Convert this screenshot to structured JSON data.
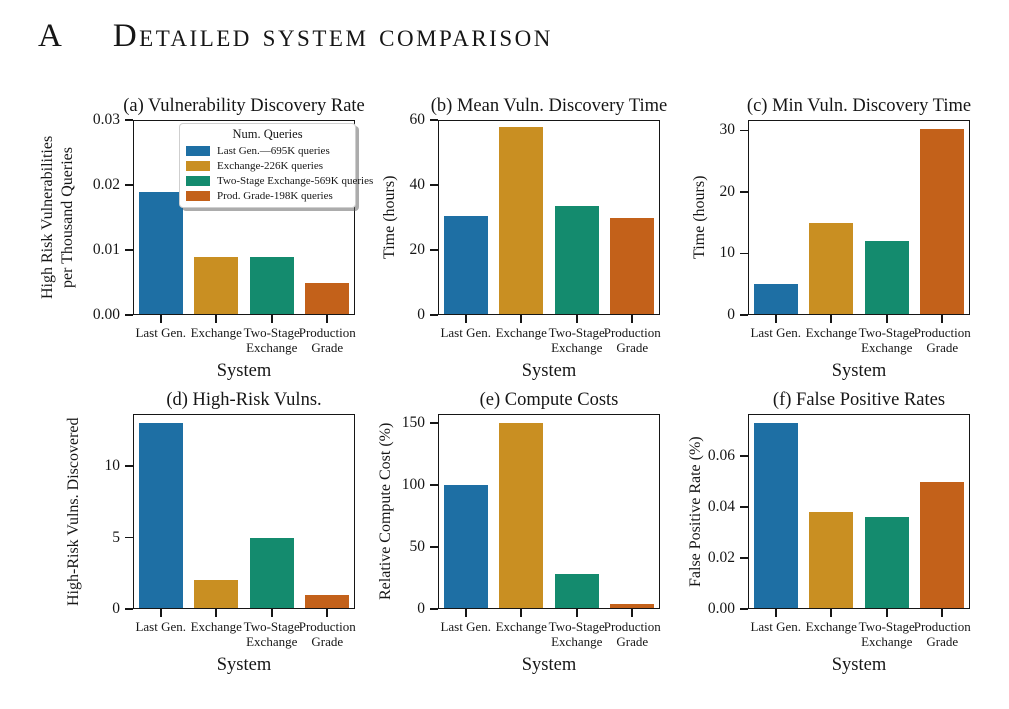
{
  "heading": {
    "label": "A",
    "title": "Detailed system comparison"
  },
  "palette": {
    "bar_colors": [
      "#1e6fa4",
      "#c98f22",
      "#148b6e",
      "#c3611a"
    ],
    "spine": "#161616"
  },
  "chart_data": [
    {
      "id": "a",
      "type": "bar",
      "title": "(a) Vulnerability Discovery Rate",
      "ylabel": "High Risk Vulnerabilities\nper Thousand Queries",
      "xlabel": "System",
      "categories": [
        "Last Gen.",
        "Exchange",
        "Two-Stage\nExchange",
        "Production\nGrade"
      ],
      "values": [
        0.019,
        0.009,
        0.009,
        0.005
      ],
      "yticks": [
        0,
        0.01,
        0.02,
        0.03
      ],
      "ytick_labels": [
        "0.00",
        "0.01",
        "0.02",
        "0.03"
      ],
      "ylim": [
        0,
        0.03
      ],
      "grid": false,
      "legend": {
        "title": "Num. Queries",
        "position": "upper right",
        "entries": [
          {
            "label": "Last Gen.—695K queries",
            "color": "#1e6fa4"
          },
          {
            "label": "Exchange-226K queries",
            "color": "#c98f22"
          },
          {
            "label": "Two-Stage Exchange-569K queries",
            "color": "#148b6e"
          },
          {
            "label": "Prod. Grade-198K queries",
            "color": "#c3611a"
          }
        ]
      }
    },
    {
      "id": "b",
      "type": "bar",
      "title": "(b) Mean Vuln. Discovery Time",
      "ylabel": "Time (hours)",
      "xlabel": "System",
      "categories": [
        "Last Gen.",
        "Exchange",
        "Two-Stage\nExchange",
        "Production\nGrade"
      ],
      "values": [
        30.5,
        58,
        33.5,
        30
      ],
      "yticks": [
        0,
        20,
        40,
        60
      ],
      "ytick_labels": [
        "0",
        "20",
        "40",
        "60"
      ],
      "ylim": [
        0,
        60
      ],
      "grid": false
    },
    {
      "id": "c",
      "type": "bar",
      "title": "(c) Min Vuln. Discovery Time",
      "ylabel": "Time (hours)",
      "xlabel": "System",
      "categories": [
        "Last Gen.",
        "Exchange",
        "Two-Stage\nExchange",
        "Production\nGrade"
      ],
      "values": [
        5,
        15,
        12,
        30.2
      ],
      "yticks": [
        0,
        10,
        20,
        30
      ],
      "ytick_labels": [
        "0",
        "10",
        "20",
        "30"
      ],
      "ylim": [
        0,
        31.7
      ],
      "grid": false
    },
    {
      "id": "d",
      "type": "bar",
      "title": "(d) High-Risk Vulns.",
      "ylabel": "High-Risk Vulns. Discovered",
      "xlabel": "System",
      "categories": [
        "Last Gen.",
        "Exchange",
        "Two-Stage\nExchange",
        "Production\nGrade"
      ],
      "values": [
        13,
        2,
        5,
        1
      ],
      "yticks": [
        0,
        5,
        10
      ],
      "ytick_labels": [
        "0",
        "5",
        "10"
      ],
      "ylim": [
        0,
        13.65
      ],
      "grid": false
    },
    {
      "id": "e",
      "type": "bar",
      "title": "(e) Compute Costs",
      "ylabel": "Relative Compute Cost (%)",
      "xlabel": "System",
      "categories": [
        "Last Gen.",
        "Exchange",
        "Two-Stage\nExchange",
        "Production\nGrade"
      ],
      "values": [
        100,
        150,
        28,
        4
      ],
      "yticks": [
        0,
        50,
        100,
        150
      ],
      "ytick_labels": [
        "0",
        "50",
        "100",
        "150"
      ],
      "ylim": [
        0,
        157.5
      ],
      "grid": false
    },
    {
      "id": "f",
      "type": "bar",
      "title": "(f) False Positive Rates",
      "ylabel": "False Positive Rate (%)",
      "xlabel": "System",
      "categories": [
        "Last Gen.",
        "Exchange",
        "Two-Stage\nExchange",
        "Production\nGrade"
      ],
      "values": [
        0.073,
        0.038,
        0.036,
        0.05
      ],
      "yticks": [
        0,
        0.02,
        0.04,
        0.06
      ],
      "ytick_labels": [
        "0.00",
        "0.02",
        "0.04",
        "0.06"
      ],
      "ylim": [
        0,
        0.0766
      ],
      "grid": false
    }
  ]
}
